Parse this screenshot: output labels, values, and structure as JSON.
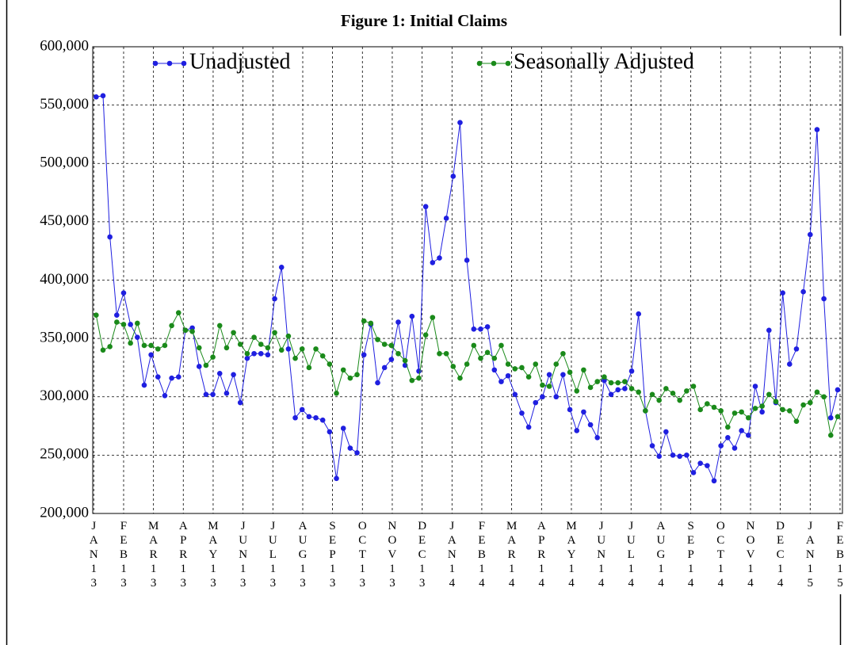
{
  "chart_data": {
    "type": "line",
    "title": "Figure 1: Initial Claims",
    "x": [
      0,
      1,
      2,
      3,
      4,
      5,
      6,
      7,
      8,
      9,
      10,
      11,
      12,
      13,
      14,
      15,
      16,
      17,
      18,
      19,
      20,
      21,
      22,
      23,
      24,
      25,
      26,
      27,
      28,
      29,
      30,
      31,
      32,
      33,
      34,
      35,
      36,
      37,
      38,
      39,
      40,
      41,
      42,
      43,
      44,
      45,
      46,
      47,
      48,
      49,
      50,
      51,
      52,
      53,
      54,
      55,
      56,
      57,
      58,
      59,
      60,
      61,
      62,
      63,
      64,
      65,
      66,
      67,
      68,
      69,
      70,
      71,
      72,
      73,
      74,
      75,
      76,
      77,
      78,
      79,
      80,
      81,
      82,
      83,
      84,
      85,
      86,
      87,
      88,
      89,
      90,
      91,
      92,
      93,
      94,
      95,
      96,
      97,
      98,
      99,
      100,
      101,
      102,
      103,
      104,
      105,
      106,
      107,
      108
    ],
    "xlim": [
      -0.5,
      108.7
    ],
    "xticks": [
      {
        "value": -0.35,
        "label": "JAN13"
      },
      {
        "value": 4.0,
        "label": "FEB13"
      },
      {
        "value": 8.35,
        "label": "MAR13"
      },
      {
        "value": 12.69,
        "label": "APR13"
      },
      {
        "value": 17.04,
        "label": "MAY13"
      },
      {
        "value": 21.39,
        "label": "JUN13"
      },
      {
        "value": 25.74,
        "label": "JUL13"
      },
      {
        "value": 30.09,
        "label": "AUG13"
      },
      {
        "value": 34.43,
        "label": "SEP13"
      },
      {
        "value": 38.78,
        "label": "OCT13"
      },
      {
        "value": 43.13,
        "label": "NOV13"
      },
      {
        "value": 47.48,
        "label": "DEC13"
      },
      {
        "value": 51.83,
        "label": "JAN14"
      },
      {
        "value": 56.17,
        "label": "FEB14"
      },
      {
        "value": 60.52,
        "label": "MAR14"
      },
      {
        "value": 64.87,
        "label": "APR14"
      },
      {
        "value": 69.22,
        "label": "MAY14"
      },
      {
        "value": 73.57,
        "label": "JUN14"
      },
      {
        "value": 77.91,
        "label": "JUL14"
      },
      {
        "value": 82.26,
        "label": "AUG14"
      },
      {
        "value": 86.61,
        "label": "SEP14"
      },
      {
        "value": 90.96,
        "label": "OCT14"
      },
      {
        "value": 95.31,
        "label": "NOV14"
      },
      {
        "value": 99.65,
        "label": "DEC14"
      },
      {
        "value": 104.0,
        "label": "JAN15"
      },
      {
        "value": 108.35,
        "label": "FEB15"
      }
    ],
    "ylim": [
      200000,
      600000
    ],
    "yticks": [
      {
        "value": 200000,
        "label": "200,000"
      },
      {
        "value": 250000,
        "label": "250,000"
      },
      {
        "value": 300000,
        "label": "300,000"
      },
      {
        "value": 350000,
        "label": "350,000"
      },
      {
        "value": 400000,
        "label": "400,000"
      },
      {
        "value": 450000,
        "label": "450,000"
      },
      {
        "value": 500000,
        "label": "500,000"
      },
      {
        "value": 550000,
        "label": "550,000"
      },
      {
        "value": 600000,
        "label": "600,000"
      }
    ],
    "grid": true,
    "legend": "top",
    "series": [
      {
        "name": "Unadjusted",
        "color": "#1f1fe0",
        "values": [
          557000,
          558000,
          437000,
          370000,
          389000,
          362000,
          351000,
          310000,
          336000,
          317000,
          301000,
          316000,
          317000,
          357000,
          359000,
          326000,
          302000,
          302000,
          320000,
          303000,
          319000,
          295000,
          333000,
          337000,
          337000,
          336000,
          384000,
          411000,
          341000,
          282000,
          289000,
          283000,
          282000,
          280000,
          270000,
          230000,
          273000,
          256000,
          252000,
          336000,
          362000,
          312000,
          325000,
          332000,
          364000,
          327000,
          369000,
          322000,
          463000,
          415000,
          419000,
          453000,
          489000,
          535000,
          417000,
          358000,
          358000,
          360000,
          323000,
          313000,
          318000,
          302000,
          286000,
          274000,
          295000,
          300000,
          319000,
          300000,
          319000,
          289000,
          271000,
          287000,
          276000,
          265000,
          314000,
          302000,
          306000,
          307000,
          322000,
          371000,
          288000,
          258000,
          249000,
          270000,
          250000,
          249000,
          250000,
          235000,
          243000,
          241000,
          228000,
          258000,
          265000,
          256000,
          271000,
          267000,
          309000,
          287000,
          357000,
          295000,
          389000,
          328000,
          341000,
          390000,
          439000,
          529000,
          384000,
          282000,
          306000
        ]
      },
      {
        "name": "Seasonally Adjusted",
        "color": "#1a8a1a",
        "values": [
          370000,
          340000,
          343000,
          364000,
          362000,
          346000,
          363000,
          344000,
          344000,
          341000,
          344000,
          361000,
          372000,
          357000,
          356000,
          342000,
          327000,
          334000,
          361000,
          342000,
          355000,
          345000,
          337000,
          351000,
          345000,
          342000,
          355000,
          340000,
          352000,
          333000,
          341000,
          325000,
          341000,
          335000,
          328000,
          303000,
          323000,
          316000,
          319000,
          365000,
          363000,
          349000,
          345000,
          344000,
          337000,
          331000,
          314000,
          316000,
          353000,
          368000,
          337000,
          337000,
          326000,
          316000,
          328000,
          344000,
          333000,
          338000,
          333000,
          344000,
          328000,
          324000,
          325000,
          317000,
          328000,
          310000,
          309000,
          328000,
          337000,
          321000,
          305000,
          323000,
          308000,
          313000,
          317000,
          312000,
          312000,
          313000,
          307000,
          304000,
          288000,
          302000,
          297000,
          307000,
          303000,
          297000,
          305000,
          309000,
          289000,
          294000,
          291000,
          288000,
          274000,
          286000,
          287000,
          282000,
          290000,
          292000,
          302000,
          296000,
          289000,
          288000,
          279000,
          293000,
          295000,
          304000,
          300000,
          267000,
          283000
        ]
      }
    ]
  }
}
